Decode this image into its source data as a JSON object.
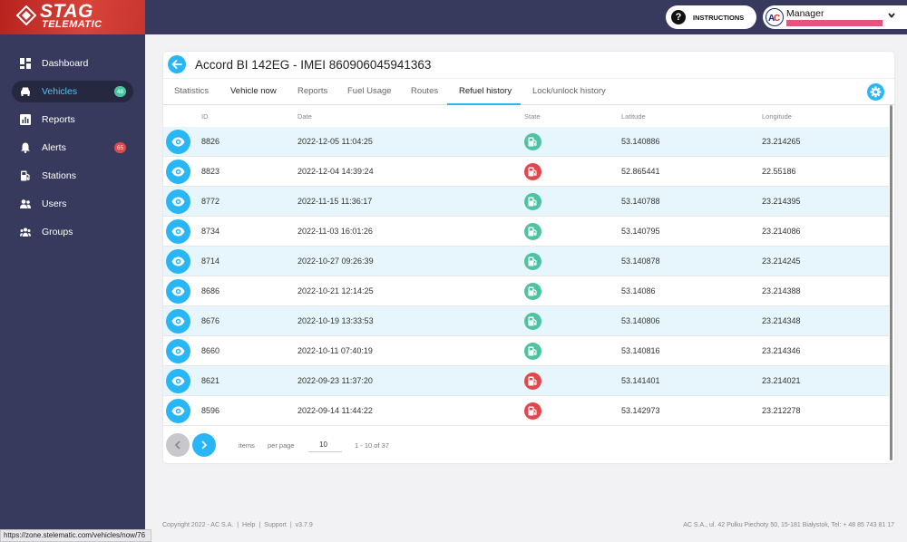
{
  "brand": {
    "line1": "STAG",
    "line2": "TELEMATIC"
  },
  "header": {
    "instructions_label": "INSTRUCTIONS",
    "user_name": "Manager"
  },
  "sidebar": {
    "items": [
      {
        "label": "Dashboard",
        "icon": "dashboard-icon"
      },
      {
        "label": "Vehicles",
        "icon": "car-icon",
        "badge": "48",
        "active": true
      },
      {
        "label": "Reports",
        "icon": "chart-icon"
      },
      {
        "label": "Alerts",
        "icon": "bell-icon",
        "badge": "65"
      },
      {
        "label": "Stations",
        "icon": "fuel-station-icon"
      },
      {
        "label": "Users",
        "icon": "users-icon"
      },
      {
        "label": "Groups",
        "icon": "groups-icon"
      }
    ]
  },
  "card": {
    "title": "Accord BI 142EG - IMEI 860906045941363",
    "tabs": [
      {
        "label": "Statistics"
      },
      {
        "label": "Vehicle now"
      },
      {
        "label": "Reports"
      },
      {
        "label": "Fuel Usage"
      },
      {
        "label": "Routes"
      },
      {
        "label": "Refuel history",
        "active": true
      },
      {
        "label": "Lock/unlock history"
      }
    ]
  },
  "table": {
    "columns": [
      "ID",
      "Date",
      "State",
      "Latitude",
      "Longitude"
    ],
    "rows": [
      {
        "id": "8826",
        "date": "2022-12-05 11:04:25",
        "state": "ok",
        "lat": "53.140886",
        "lon": "23.214265"
      },
      {
        "id": "8823",
        "date": "2022-12-04 14:39:24",
        "state": "error",
        "lat": "52.865441",
        "lon": "22.55186"
      },
      {
        "id": "8772",
        "date": "2022-11-15 11:36:17",
        "state": "ok",
        "lat": "53.140788",
        "lon": "23.214395"
      },
      {
        "id": "8734",
        "date": "2022-11-03 16:01:26",
        "state": "ok",
        "lat": "53.140795",
        "lon": "23.214086"
      },
      {
        "id": "8714",
        "date": "2022-10-27 09:26:39",
        "state": "ok",
        "lat": "53.140878",
        "lon": "23.214245"
      },
      {
        "id": "8686",
        "date": "2022-10-21 12:14:25",
        "state": "ok",
        "lat": "53.14086",
        "lon": "23.214388"
      },
      {
        "id": "8676",
        "date": "2022-10-19 13:33:53",
        "state": "ok",
        "lat": "53.140806",
        "lon": "23.214348"
      },
      {
        "id": "8660",
        "date": "2022-10-11 07:40:19",
        "state": "ok",
        "lat": "53.140816",
        "lon": "23.214346"
      },
      {
        "id": "8621",
        "date": "2022-09-23 11:37:20",
        "state": "error",
        "lat": "53.141401",
        "lon": "23.214021"
      },
      {
        "id": "8596",
        "date": "2022-09-14 11:44:22",
        "state": "error",
        "lat": "53.142973",
        "lon": "23.212278"
      }
    ]
  },
  "pagination": {
    "items_label": "items",
    "per_page_label": "per page",
    "per_page_value": "10",
    "range": "1 - 10 of 37"
  },
  "footer": {
    "copyright": "Copyright 2022 - AC S.A.",
    "help": "Help",
    "support": "Support",
    "version": "v3.7.9",
    "address": "AC S.A., ul. 42 Pułku Piechoty 50, 15-181 Białystok, Tel: + 48 85 743 81 17"
  },
  "statusbar": {
    "url": "https://zone.stelematic.com/vehicles/now/76"
  },
  "colors": {
    "accent": "#29b6f6",
    "state_ok": "#4fc3a1",
    "state_error": "#e0484e",
    "sidebar_bg": "#373a5d",
    "row_alt": "#e6f6fc"
  }
}
